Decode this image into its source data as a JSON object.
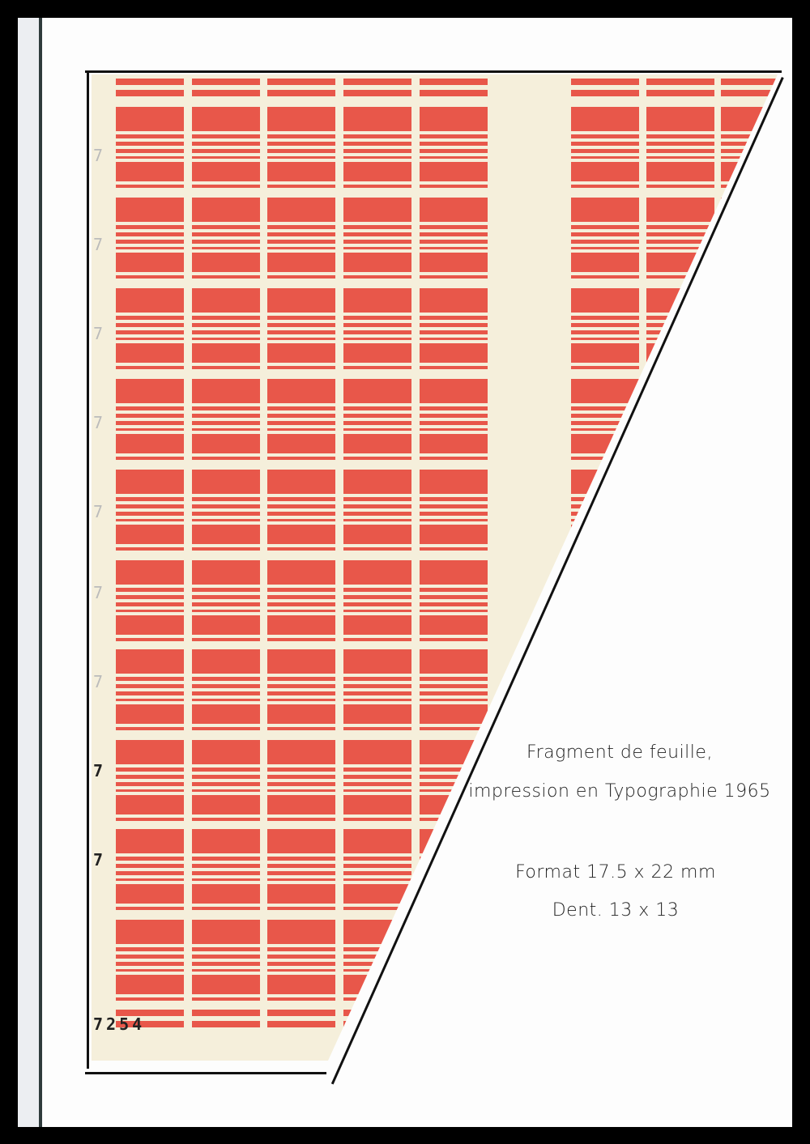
{
  "sheet": {
    "control_number": "7254",
    "margin_mark": "7",
    "stamp_color": "#e8574a",
    "paper_color": "#f5efdb"
  },
  "caption": {
    "line1": "Fragment de feuille,",
    "line2": "impression en Typographie 1965",
    "line3": "Format 17.5 x 22 mm",
    "line4": "Dent. 13 x 13"
  }
}
